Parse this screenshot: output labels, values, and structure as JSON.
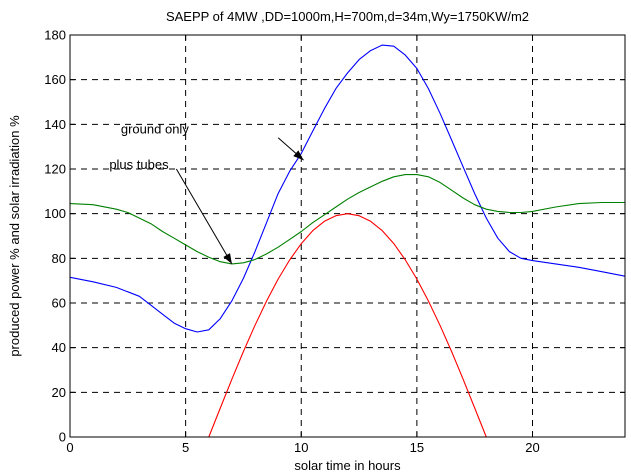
{
  "chart_data": {
    "type": "line",
    "title": "SAEPP of 4MW ,DD=1000m,H=700m,d=34m,Wy=1750KW/m2",
    "xlabel": "solar time in hours",
    "ylabel": "produced power % and solar irradiation %",
    "xlim": [
      0,
      24
    ],
    "ylim": [
      0,
      180
    ],
    "xticks": [
      0,
      5,
      10,
      15,
      20
    ],
    "yticks": [
      0,
      20,
      40,
      60,
      80,
      100,
      120,
      140,
      160,
      180
    ],
    "grid": true,
    "colors": {
      "blue": "#0000ff",
      "green": "#008000",
      "red": "#ff0000"
    },
    "series": [
      {
        "color": "blue",
        "x": [
          0,
          1,
          2,
          3,
          3.5,
          4,
          4.5,
          5,
          5.5,
          6,
          6.5,
          7,
          7.5,
          8,
          8.5,
          9,
          9.5,
          10,
          10.5,
          11,
          11.5,
          12,
          12.5,
          13,
          13.5,
          14,
          14.5,
          15,
          15.5,
          16,
          16.5,
          17,
          17.5,
          18,
          18.5,
          19,
          19.5,
          20,
          21,
          22,
          23,
          24
        ],
        "y": [
          71.5,
          69.5,
          67,
          63,
          59,
          55,
          51,
          48.5,
          47,
          48,
          53,
          61,
          71,
          83,
          96,
          109,
          119,
          127,
          137,
          147,
          156,
          163,
          169,
          173,
          175.5,
          175,
          171,
          165,
          156,
          145,
          133,
          121,
          109,
          98,
          89,
          83,
          80,
          79,
          77.5,
          76,
          74,
          72
        ]
      },
      {
        "color": "green",
        "x": [
          0,
          1,
          2,
          2.5,
          3,
          3.5,
          4,
          4.5,
          5,
          5.5,
          6,
          6.5,
          7,
          7.5,
          8,
          8.5,
          9,
          9.5,
          10,
          10.5,
          11,
          11.5,
          12,
          12.5,
          13,
          13.5,
          14,
          14.5,
          15,
          15.5,
          16,
          16.5,
          17,
          17.5,
          18,
          18.5,
          19,
          19.5,
          20,
          21,
          22,
          23,
          24
        ],
        "y": [
          104.5,
          104,
          102,
          100.5,
          98,
          95.5,
          92,
          89,
          86,
          83,
          80.5,
          78.5,
          77.5,
          78,
          79.5,
          82,
          85,
          88.5,
          92,
          96,
          99.5,
          103,
          106.5,
          109.5,
          112,
          114.5,
          116.5,
          117.5,
          117.5,
          116.5,
          114,
          110.5,
          107,
          104,
          102,
          101,
          100.5,
          100.5,
          101,
          103,
          104.5,
          105,
          105
        ]
      },
      {
        "color": "red",
        "x": [
          0,
          6,
          6.5,
          7,
          7.5,
          8,
          8.5,
          9,
          9.5,
          10,
          10.5,
          11,
          11.5,
          12,
          12.5,
          13,
          13.5,
          14,
          14.5,
          15,
          15.5,
          16,
          16.5,
          17,
          17.5,
          18,
          24
        ],
        "y": [
          0,
          0,
          13,
          25.9,
          38.3,
          50,
          60.9,
          70.7,
          79.3,
          86.6,
          92.4,
          96.6,
          99.1,
          100,
          99.1,
          96.6,
          92.4,
          86.6,
          79.3,
          70.7,
          60.9,
          50,
          38.3,
          25.9,
          13,
          0,
          0
        ]
      }
    ],
    "annotations": [
      {
        "text": "ground only",
        "label_at": [
          2.2,
          136
        ],
        "arrow_from": [
          9.0,
          134
        ],
        "arrow_to": [
          10.1,
          124
        ]
      },
      {
        "text": "plus tubes",
        "label_at": [
          1.7,
          120
        ],
        "arrow_from": [
          4.6,
          120
        ],
        "arrow_to": [
          7.0,
          77.5
        ]
      }
    ]
  }
}
